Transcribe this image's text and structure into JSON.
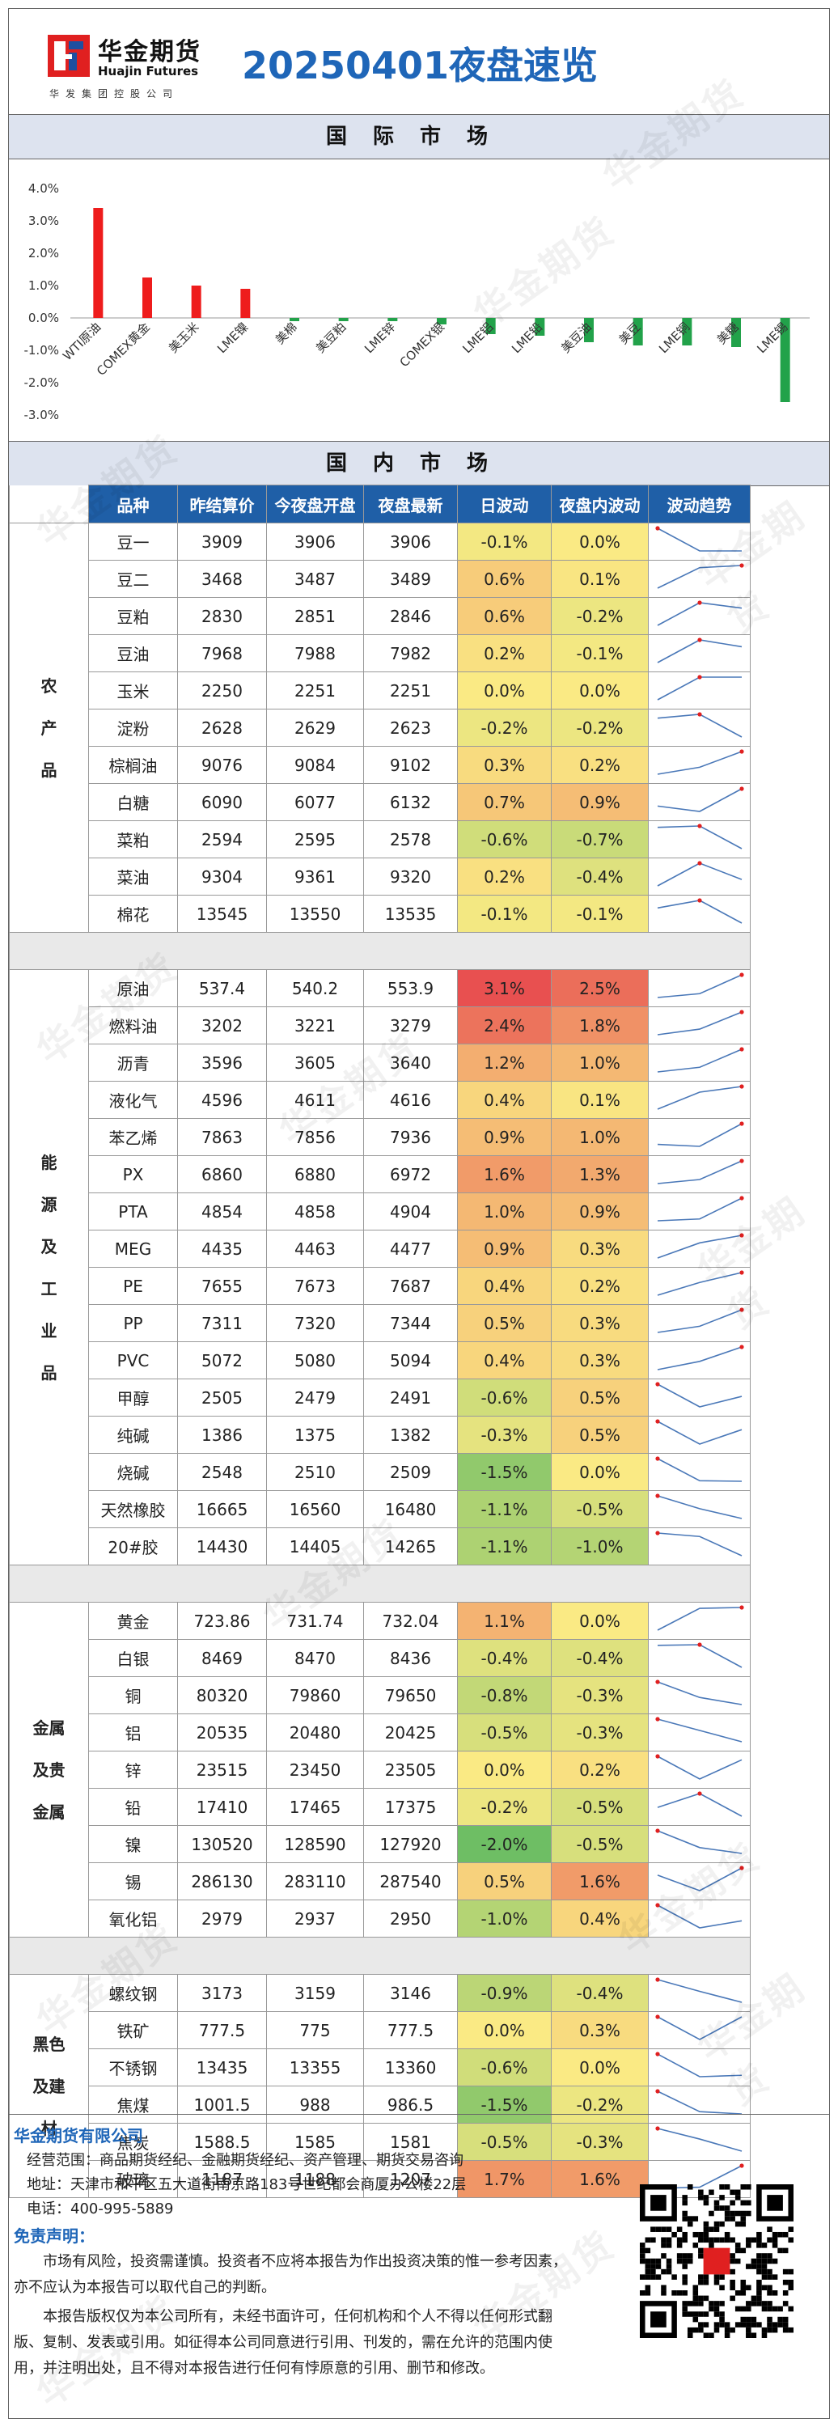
{
  "header": {
    "logo_cn": "华金期货",
    "logo_en": "Huajin Futures",
    "logo_sub": "华发集团控股公司",
    "title": "20250401夜盘速览"
  },
  "intl_band": "国际市场",
  "chart_data": {
    "type": "bar",
    "categories": [
      "WTI原油",
      "COMEX黄金",
      "美玉米",
      "LME镍",
      "美棉",
      "美豆粕",
      "LME锌",
      "COMEX银",
      "LME铝",
      "LME铅",
      "美豆油",
      "美豆",
      "LME铜",
      "美糖",
      "LME锡"
    ],
    "values": [
      3.4,
      1.25,
      1.0,
      0.9,
      -0.1,
      -0.1,
      -0.1,
      -0.2,
      -0.5,
      -0.55,
      -0.75,
      -0.85,
      -0.85,
      -0.9,
      -2.6
    ],
    "yticks": [
      "4.0%",
      "3.0%",
      "2.0%",
      "1.0%",
      "0.0%",
      "-1.0%",
      "-2.0%",
      "-3.0%"
    ],
    "ylim": [
      -3.0,
      4.0
    ],
    "grid": false,
    "colors": {
      "positive": "#ee1c1c",
      "negative": "#22a24a"
    }
  },
  "domestic_band": "国内市场",
  "table": {
    "headers": [
      "品种",
      "昨结算价",
      "今夜盘开盘",
      "夜盘最新",
      "日波动",
      "夜盘内波动",
      "波动趋势"
    ],
    "sections": [
      {
        "name": "农产品",
        "rows": [
          {
            "n": "豆一",
            "prev": "3909",
            "open": "3906",
            "last": "3906",
            "day": "-0.1%",
            "night": "0.0%",
            "dv": -0.1,
            "nv": 0.0,
            "trend": [
              3909,
              3906,
              3906
            ]
          },
          {
            "n": "豆二",
            "prev": "3468",
            "open": "3487",
            "last": "3489",
            "day": "0.6%",
            "night": "0.1%",
            "dv": 0.6,
            "nv": 0.1,
            "trend": [
              3468,
              3487,
              3489
            ]
          },
          {
            "n": "豆粕",
            "prev": "2830",
            "open": "2851",
            "last": "2846",
            "day": "0.6%",
            "night": "-0.2%",
            "dv": 0.6,
            "nv": -0.2,
            "trend": [
              2830,
              2851,
              2846
            ]
          },
          {
            "n": "豆油",
            "prev": "7968",
            "open": "7988",
            "last": "7982",
            "day": "0.2%",
            "night": "-0.1%",
            "dv": 0.2,
            "nv": -0.1,
            "trend": [
              7968,
              7988,
              7982
            ]
          },
          {
            "n": "玉米",
            "prev": "2250",
            "open": "2251",
            "last": "2251",
            "day": "0.0%",
            "night": "0.0%",
            "dv": 0.0,
            "nv": 0.0,
            "trend": [
              2250,
              2251,
              2251
            ]
          },
          {
            "n": "淀粉",
            "prev": "2628",
            "open": "2629",
            "last": "2623",
            "day": "-0.2%",
            "night": "-0.2%",
            "dv": -0.2,
            "nv": -0.2,
            "trend": [
              2628,
              2629,
              2623
            ]
          },
          {
            "n": "棕榈油",
            "prev": "9076",
            "open": "9084",
            "last": "9102",
            "day": "0.3%",
            "night": "0.2%",
            "dv": 0.3,
            "nv": 0.2,
            "trend": [
              9076,
              9084,
              9102
            ]
          },
          {
            "n": "白糖",
            "prev": "6090",
            "open": "6077",
            "last": "6132",
            "day": "0.7%",
            "night": "0.9%",
            "dv": 0.7,
            "nv": 0.9,
            "trend": [
              6090,
              6077,
              6132
            ]
          },
          {
            "n": "菜粕",
            "prev": "2594",
            "open": "2595",
            "last": "2578",
            "day": "-0.6%",
            "night": "-0.7%",
            "dv": -0.6,
            "nv": -0.7,
            "trend": [
              2594,
              2595,
              2578
            ]
          },
          {
            "n": "菜油",
            "prev": "9304",
            "open": "9361",
            "last": "9320",
            "day": "0.2%",
            "night": "-0.4%",
            "dv": 0.2,
            "nv": -0.4,
            "trend": [
              9304,
              9361,
              9320
            ]
          },
          {
            "n": "棉花",
            "prev": "13545",
            "open": "13550",
            "last": "13535",
            "day": "-0.1%",
            "night": "-0.1%",
            "dv": -0.1,
            "nv": -0.1,
            "trend": [
              13545,
              13550,
              13535
            ]
          }
        ]
      },
      {
        "name": "能源及工业品",
        "rows": [
          {
            "n": "原油",
            "prev": "537.4",
            "open": "540.2",
            "last": "553.9",
            "day": "3.1%",
            "night": "2.5%",
            "dv": 3.1,
            "nv": 2.5,
            "trend": [
              537.4,
              540.2,
              553.9
            ]
          },
          {
            "n": "燃料油",
            "prev": "3202",
            "open": "3221",
            "last": "3279",
            "day": "2.4%",
            "night": "1.8%",
            "dv": 2.4,
            "nv": 1.8,
            "trend": [
              3202,
              3221,
              3279
            ]
          },
          {
            "n": "沥青",
            "prev": "3596",
            "open": "3605",
            "last": "3640",
            "day": "1.2%",
            "night": "1.0%",
            "dv": 1.2,
            "nv": 1.0,
            "trend": [
              3596,
              3605,
              3640
            ]
          },
          {
            "n": "液化气",
            "prev": "4596",
            "open": "4611",
            "last": "4616",
            "day": "0.4%",
            "night": "0.1%",
            "dv": 0.4,
            "nv": 0.1,
            "trend": [
              4596,
              4611,
              4616
            ]
          },
          {
            "n": "苯乙烯",
            "prev": "7863",
            "open": "7856",
            "last": "7936",
            "day": "0.9%",
            "night": "1.0%",
            "dv": 0.9,
            "nv": 1.0,
            "trend": [
              7863,
              7856,
              7936
            ]
          },
          {
            "n": "PX",
            "prev": "6860",
            "open": "6880",
            "last": "6972",
            "day": "1.6%",
            "night": "1.3%",
            "dv": 1.6,
            "nv": 1.3,
            "trend": [
              6860,
              6880,
              6972
            ]
          },
          {
            "n": "PTA",
            "prev": "4854",
            "open": "4858",
            "last": "4904",
            "day": "1.0%",
            "night": "0.9%",
            "dv": 1.0,
            "nv": 0.9,
            "trend": [
              4854,
              4858,
              4904
            ]
          },
          {
            "n": "MEG",
            "prev": "4435",
            "open": "4463",
            "last": "4477",
            "day": "0.9%",
            "night": "0.3%",
            "dv": 0.9,
            "nv": 0.3,
            "trend": [
              4435,
              4463,
              4477
            ]
          },
          {
            "n": "PE",
            "prev": "7655",
            "open": "7673",
            "last": "7687",
            "day": "0.4%",
            "night": "0.2%",
            "dv": 0.4,
            "nv": 0.2,
            "trend": [
              7655,
              7673,
              7687
            ]
          },
          {
            "n": "PP",
            "prev": "7311",
            "open": "7320",
            "last": "7344",
            "day": "0.5%",
            "night": "0.3%",
            "dv": 0.5,
            "nv": 0.3,
            "trend": [
              7311,
              7320,
              7344
            ]
          },
          {
            "n": "PVC",
            "prev": "5072",
            "open": "5080",
            "last": "5094",
            "day": "0.4%",
            "night": "0.3%",
            "dv": 0.4,
            "nv": 0.3,
            "trend": [
              5072,
              5080,
              5094
            ]
          },
          {
            "n": "甲醇",
            "prev": "2505",
            "open": "2479",
            "last": "2491",
            "day": "-0.6%",
            "night": "0.5%",
            "dv": -0.6,
            "nv": 0.5,
            "trend": [
              2505,
              2479,
              2491
            ]
          },
          {
            "n": "纯碱",
            "prev": "1386",
            "open": "1375",
            "last": "1382",
            "day": "-0.3%",
            "night": "0.5%",
            "dv": -0.3,
            "nv": 0.5,
            "trend": [
              1386,
              1375,
              1382
            ]
          },
          {
            "n": "烧碱",
            "prev": "2548",
            "open": "2510",
            "last": "2509",
            "day": "-1.5%",
            "night": "0.0%",
            "dv": -1.5,
            "nv": 0.0,
            "trend": [
              2548,
              2510,
              2509
            ]
          },
          {
            "n": "天然橡胶",
            "prev": "16665",
            "open": "16560",
            "last": "16480",
            "day": "-1.1%",
            "night": "-0.5%",
            "dv": -1.1,
            "nv": -0.5,
            "trend": [
              16665,
              16560,
              16480
            ]
          },
          {
            "n": "20#胶",
            "prev": "14430",
            "open": "14405",
            "last": "14265",
            "day": "-1.1%",
            "night": "-1.0%",
            "dv": -1.1,
            "nv": -1.0,
            "trend": [
              14430,
              14405,
              14265
            ]
          }
        ]
      },
      {
        "name": "金属及贵金属",
        "rows": [
          {
            "n": "黄金",
            "prev": "723.86",
            "open": "731.74",
            "last": "732.04",
            "day": "1.1%",
            "night": "0.0%",
            "dv": 1.1,
            "nv": 0.0,
            "trend": [
              723.86,
              731.74,
              732.04
            ]
          },
          {
            "n": "白银",
            "prev": "8469",
            "open": "8470",
            "last": "8436",
            "day": "-0.4%",
            "night": "-0.4%",
            "dv": -0.4,
            "nv": -0.4,
            "trend": [
              8469,
              8470,
              8436
            ]
          },
          {
            "n": "铜",
            "prev": "80320",
            "open": "79860",
            "last": "79650",
            "day": "-0.8%",
            "night": "-0.3%",
            "dv": -0.8,
            "nv": -0.3,
            "trend": [
              80320,
              79860,
              79650
            ]
          },
          {
            "n": "铝",
            "prev": "20535",
            "open": "20480",
            "last": "20425",
            "day": "-0.5%",
            "night": "-0.3%",
            "dv": -0.5,
            "nv": -0.3,
            "trend": [
              20535,
              20480,
              20425
            ]
          },
          {
            "n": "锌",
            "prev": "23515",
            "open": "23450",
            "last": "23505",
            "day": "0.0%",
            "night": "0.2%",
            "dv": 0.0,
            "nv": 0.2,
            "trend": [
              23515,
              23450,
              23505
            ]
          },
          {
            "n": "铅",
            "prev": "17410",
            "open": "17465",
            "last": "17375",
            "day": "-0.2%",
            "night": "-0.5%",
            "dv": -0.2,
            "nv": -0.5,
            "trend": [
              17410,
              17465,
              17375
            ]
          },
          {
            "n": "镍",
            "prev": "130520",
            "open": "128590",
            "last": "127920",
            "day": "-2.0%",
            "night": "-0.5%",
            "dv": -2.0,
            "nv": -0.5,
            "trend": [
              130520,
              128590,
              127920
            ]
          },
          {
            "n": "锡",
            "prev": "286130",
            "open": "283110",
            "last": "287540",
            "day": "0.5%",
            "night": "1.6%",
            "dv": 0.5,
            "nv": 1.6,
            "trend": [
              286130,
              283110,
              287540
            ]
          },
          {
            "n": "氧化铝",
            "prev": "2979",
            "open": "2937",
            "last": "2950",
            "day": "-1.0%",
            "night": "0.4%",
            "dv": -1.0,
            "nv": 0.4,
            "trend": [
              2979,
              2937,
              2950
            ]
          }
        ]
      },
      {
        "name": "黑色及建材",
        "rows": [
          {
            "n": "螺纹钢",
            "prev": "3173",
            "open": "3159",
            "last": "3146",
            "day": "-0.9%",
            "night": "-0.4%",
            "dv": -0.9,
            "nv": -0.4,
            "trend": [
              3173,
              3159,
              3146
            ]
          },
          {
            "n": "铁矿",
            "prev": "777.5",
            "open": "775",
            "last": "777.5",
            "day": "0.0%",
            "night": "0.3%",
            "dv": 0.0,
            "nv": 0.3,
            "trend": [
              777.5,
              775,
              777.5
            ]
          },
          {
            "n": "不锈钢",
            "prev": "13435",
            "open": "13355",
            "last": "13360",
            "day": "-0.6%",
            "night": "0.0%",
            "dv": -0.6,
            "nv": 0.0,
            "trend": [
              13435,
              13355,
              13360
            ]
          },
          {
            "n": "焦煤",
            "prev": "1001.5",
            "open": "988",
            "last": "986.5",
            "day": "-1.5%",
            "night": "-0.2%",
            "dv": -1.5,
            "nv": -0.2,
            "trend": [
              1001.5,
              988,
              986.5
            ]
          },
          {
            "n": "焦炭",
            "prev": "1588.5",
            "open": "1585",
            "last": "1581",
            "day": "-0.5%",
            "night": "-0.3%",
            "dv": -0.5,
            "nv": -0.3,
            "trend": [
              1588.5,
              1585,
              1581
            ]
          },
          {
            "n": "玻璃",
            "prev": "1187",
            "open": "1188",
            "last": "1207",
            "day": "1.7%",
            "night": "1.6%",
            "dv": 1.7,
            "nv": 1.6,
            "trend": [
              1187,
              1188,
              1207
            ]
          }
        ]
      }
    ]
  },
  "footer": {
    "company": "华金期货有限公司",
    "scope": "经营范围：商品期货经纪、金融期货经纪、资产管理、期货交易咨询",
    "address": "地址：天津市和平区五大道街南京路183号世纪都会商厦办公楼22层",
    "phone": "电话：400-995-5889",
    "disclaimer_title": "免责声明：",
    "para1": "市场有风险，投资需谨慎。投资者不应将本报告为作出投资决策的惟一参考因素，亦不应认为本报告可以取代自己的判断。",
    "para2": "本报告版权仅为本公司所有，未经书面许可，任何机构和个人不得以任何形式翻版、复制、发表或引用。如征得本公司同意进行引用、刊发的，需在允许的范围内使用，并注明出处，且不得对本报告进行任何有悖原意的引用、删节和修改。"
  },
  "watermark": "华金期货"
}
